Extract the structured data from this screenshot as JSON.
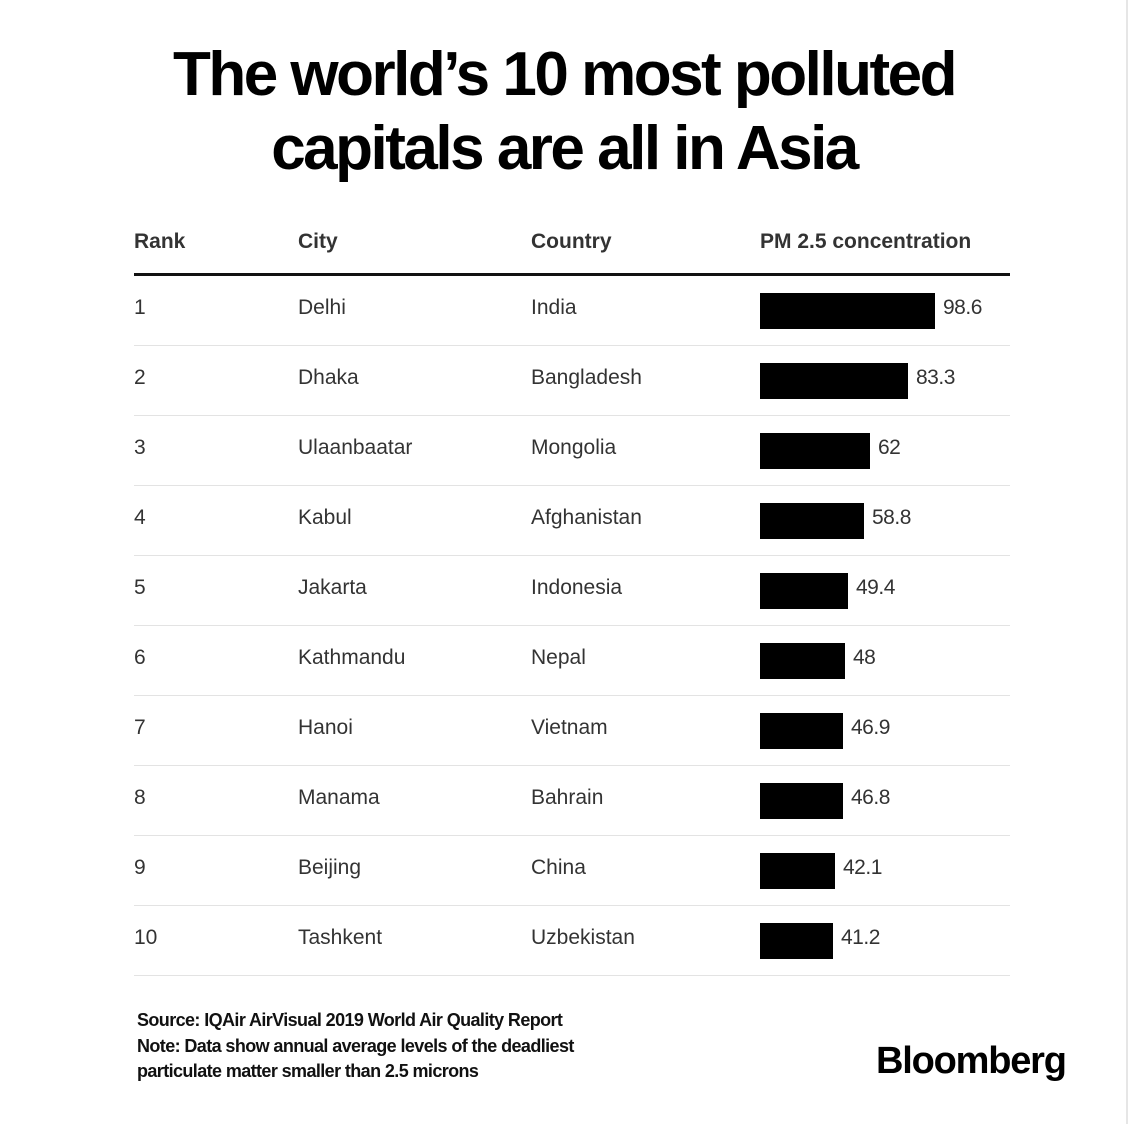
{
  "chart_data": {
    "type": "table",
    "title_lines": [
      "The world’s 10 most polluted",
      "capitals are all in Asia"
    ],
    "columns": [
      "Rank",
      "City",
      "Country",
      "PM 2.5 concentration"
    ],
    "rows": [
      {
        "rank": "1",
        "city": "Delhi",
        "country": "India",
        "value": 98.6,
        "label": "98.6"
      },
      {
        "rank": "2",
        "city": "Dhaka",
        "country": "Bangladesh",
        "value": 83.3,
        "label": "83.3"
      },
      {
        "rank": "3",
        "city": "Ulaanbaatar",
        "country": "Mongolia",
        "value": 62,
        "label": "62"
      },
      {
        "rank": "4",
        "city": "Kabul",
        "country": "Afghanistan",
        "value": 58.8,
        "label": "58.8"
      },
      {
        "rank": "5",
        "city": "Jakarta",
        "country": "Indonesia",
        "value": 49.4,
        "label": "49.4"
      },
      {
        "rank": "6",
        "city": "Kathmandu",
        "country": "Nepal",
        "value": 48,
        "label": "48"
      },
      {
        "rank": "7",
        "city": "Hanoi",
        "country": "Vietnam",
        "value": 46.9,
        "label": "46.9"
      },
      {
        "rank": "8",
        "city": "Manama",
        "country": "Bahrain",
        "value": 46.8,
        "label": "46.8"
      },
      {
        "rank": "9",
        "city": "Beijing",
        "country": "China",
        "value": 42.1,
        "label": "42.1"
      },
      {
        "rank": "10",
        "city": "Tashkent",
        "country": "Uzbekistan",
        "value": 41.2,
        "label": "41.2"
      }
    ],
    "bar_color": "#000000"
  },
  "footer": {
    "source": "Source: IQAir AirVisual 2019 World Air Quality Report",
    "note_line1": "Note: Data show annual average levels of the deadliest",
    "note_line2": "particulate matter smaller than 2.5 microns"
  },
  "brand": "Bloomberg"
}
